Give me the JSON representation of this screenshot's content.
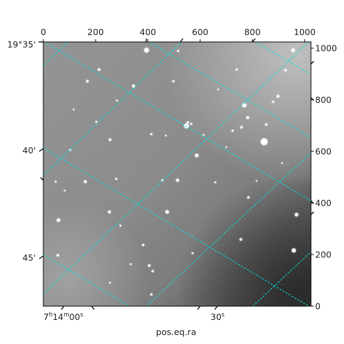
{
  "chart_data": {
    "type": "image",
    "description_axes": "astronomical image with pixel axes and celestial coordinate grid",
    "pixel_axes": {
      "xlim": [
        0,
        1024
      ],
      "ylim": [
        0,
        1024
      ],
      "top_ticks": [
        0,
        200,
        400,
        600,
        800,
        1000
      ],
      "right_ticks": [
        0,
        200,
        400,
        600,
        800,
        1000
      ]
    },
    "world_axes": {
      "xlabel": "pos.eq.ra",
      "ra_tick_labels": [
        {
          "prefix": "7",
          "h": "h",
          "mid": "14",
          "m": "m",
          "suffix": "00",
          "s": "s"
        },
        {
          "prefix": "",
          "h": "",
          "mid": "",
          "m": "",
          "suffix": "30",
          "s": "s"
        }
      ],
      "dec_tick_labels": [
        "19°35'",
        "40'",
        "45'"
      ]
    },
    "grid": {
      "color": "#00e5e5",
      "style": "dashed"
    },
    "colormap": "grayscale"
  }
}
